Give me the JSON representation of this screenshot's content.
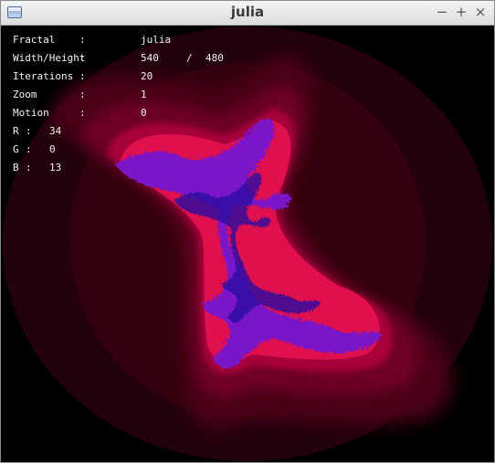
{
  "window": {
    "title": "julia",
    "buttons": {
      "minimize": "−",
      "maximize": "+",
      "close": "×"
    }
  },
  "info": {
    "rows": [
      {
        "label": "Fractal",
        "sep": ":",
        "value": "julia"
      },
      {
        "label": "Width/Height",
        "sep": ":",
        "value": "540",
        "slash": "/",
        "value2": "480"
      },
      {
        "label": "Iterations",
        "sep": ":",
        "value": "20"
      },
      {
        "label": "Zoom",
        "sep": ":",
        "value": "1"
      },
      {
        "label": "Motion",
        "sep": ":",
        "value": "0"
      }
    ],
    "rgb": [
      {
        "label": "R",
        "sep": ":",
        "value": "34"
      },
      {
        "label": "G",
        "sep": ":",
        "value": "0"
      },
      {
        "label": "B",
        "sep": ":",
        "value": "13"
      }
    ]
  },
  "colors": {
    "background": "#000000",
    "band1": "#22000d",
    "band2": "#33000f",
    "band3": "#4a0017",
    "band4": "#6e0025",
    "band5": "#a8003a",
    "band6": "#e0104f",
    "core": "#7a14c8",
    "core_inner": "#2a0aa0"
  }
}
